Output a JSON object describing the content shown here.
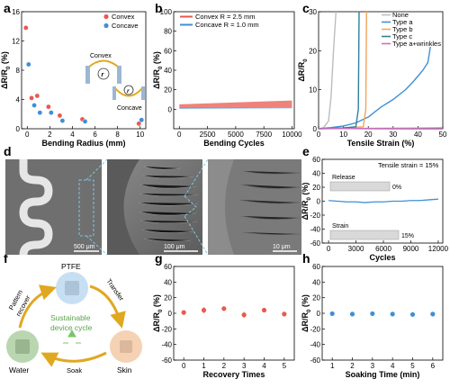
{
  "chart_data": [
    {
      "panel": "a",
      "type": "scatter",
      "xlabel": "Bending Radius (mm)",
      "ylabel": "ΔR/R0 (%)",
      "xlim": [
        -0.5,
        10.5
      ],
      "ylim": [
        0,
        16
      ],
      "xticks": [
        "0",
        "2",
        "4",
        "6",
        "8",
        "10"
      ],
      "yticks": [
        "0",
        "4",
        "8",
        "12",
        "16"
      ],
      "legend_position": "top-right",
      "series": [
        {
          "name": "Convex",
          "color": "#e8594f",
          "x": [
            0,
            0.5,
            1,
            2,
            3,
            5,
            10
          ],
          "y": [
            13.8,
            4.2,
            4.5,
            3.0,
            1.8,
            1.3,
            0.7
          ]
        },
        {
          "name": "Concave",
          "color": "#3f8fd8",
          "x": [
            0,
            0.5,
            1,
            2,
            3,
            5,
            10
          ],
          "y": [
            8.8,
            3.2,
            2.2,
            2.2,
            1.1,
            1.0,
            1.2
          ]
        }
      ],
      "annotations": {
        "convex": "Convex",
        "concave": "Concave",
        "r": "r"
      }
    },
    {
      "panel": "b",
      "type": "area",
      "xlabel": "Bending Cycles",
      "ylabel": "ΔR/R0 (%)",
      "xlim": [
        -500,
        10200
      ],
      "ylim": [
        -20,
        100
      ],
      "xticks": [
        "0",
        "2500",
        "5000",
        "7500",
        "10000"
      ],
      "yticks": [
        "0",
        "20",
        "40",
        "60",
        "80",
        "100"
      ],
      "legend_position": "top-left",
      "series": [
        {
          "name": "Convex   R = 2.5 mm",
          "color": "#e8594f",
          "x": [
            0,
            10000
          ],
          "y_low": [
            1,
            2
          ],
          "y_high": [
            5,
            9
          ]
        },
        {
          "name": "Concave R = 1.0 mm",
          "color": "#3f8fd8",
          "x": [
            0,
            10000
          ],
          "y_low": [
            0.5,
            1
          ],
          "y_high": [
            1.5,
            2
          ]
        }
      ]
    },
    {
      "panel": "c",
      "type": "line",
      "xlabel": "Tensile Strain (%)",
      "ylabel": "ΔR/R0",
      "xlim": [
        0,
        50
      ],
      "ylim": [
        0,
        30
      ],
      "xticks": [
        "0",
        "10",
        "20",
        "30",
        "40",
        "50"
      ],
      "yticks": [
        "0",
        "10",
        "20",
        "30"
      ],
      "legend_position": "top-right",
      "series": [
        {
          "name": "None",
          "color": "#bdbdbd",
          "x": [
            0,
            2,
            4,
            5,
            6,
            7
          ],
          "y": [
            0,
            0.3,
            2,
            8,
            20,
            30
          ]
        },
        {
          "name": "Type a",
          "color": "#3f8fd8",
          "x": [
            0,
            5,
            10,
            15,
            20,
            25,
            30,
            35,
            38,
            40,
            42,
            44,
            45
          ],
          "y": [
            0,
            0.3,
            0.7,
            1.5,
            3,
            5.5,
            7.5,
            10,
            12,
            13.5,
            15,
            17,
            21
          ]
        },
        {
          "name": "Type b",
          "color": "#f2a35b",
          "x": [
            0,
            10,
            18,
            19,
            19.3
          ],
          "y": [
            0,
            0.2,
            0.5,
            5,
            30
          ]
        },
        {
          "name": "Type c",
          "color": "#2f7f9a",
          "x": [
            0,
            10,
            15,
            16,
            16.3
          ],
          "y": [
            0,
            0.2,
            0.5,
            5,
            30
          ]
        },
        {
          "name": "Type a+wrinkles",
          "color": "#cc6ec0",
          "x": [
            0,
            10,
            20,
            30,
            40,
            50
          ],
          "y": [
            0,
            0.05,
            0.1,
            0.12,
            0.15,
            0.2
          ]
        }
      ]
    },
    {
      "panel": "e",
      "type": "line",
      "xlabel": "Cycles",
      "ylabel": "ΔR/R0 (%)",
      "xlim": [
        -700,
        12500
      ],
      "ylim": [
        -60,
        60
      ],
      "xticks": [
        "0",
        "3000",
        "6000",
        "9000",
        "12000"
      ],
      "yticks": [
        "-60",
        "-40",
        "-20",
        "0",
        "20",
        "40",
        "60"
      ],
      "series": [
        {
          "name": "response",
          "color": "#3f8fd8",
          "x": [
            0,
            1000,
            2000,
            3000,
            4000,
            5000,
            6000,
            7000,
            8000,
            9000,
            10000,
            11000,
            12000
          ],
          "y": [
            1,
            0,
            -1,
            -1,
            -2,
            -1,
            -1,
            0,
            0,
            1,
            1,
            2,
            3
          ]
        }
      ],
      "annotations": {
        "strain_note": "Tensile strain = 15%",
        "release": "Release",
        "strain": "Strain",
        "zero": "0%",
        "fifteen": "15%"
      }
    },
    {
      "panel": "g",
      "type": "scatter",
      "xlabel": "Recovery Times",
      "ylabel": "ΔR/R0 (%)",
      "xlim": [
        -0.5,
        5.5
      ],
      "ylim": [
        -60,
        60
      ],
      "xticks": [
        "0",
        "1",
        "2",
        "3",
        "4",
        "5"
      ],
      "yticks": [
        "-60",
        "-40",
        "-20",
        "0",
        "20",
        "40",
        "60"
      ],
      "series": [
        {
          "name": "recovery",
          "color": "#e8594f",
          "x": [
            0,
            1,
            2,
            3,
            4,
            5
          ],
          "y": [
            1,
            4,
            6,
            -2,
            4,
            -1
          ],
          "err": [
            2,
            4,
            3,
            4,
            1,
            3
          ]
        }
      ]
    },
    {
      "panel": "h",
      "type": "scatter",
      "xlabel": "Soaking Time (min)",
      "ylabel": "ΔR/R0 (%)",
      "xlim": [
        0.5,
        6.5
      ],
      "ylim": [
        -60,
        60
      ],
      "xticks": [
        "1",
        "2",
        "3",
        "4",
        "5",
        "6"
      ],
      "yticks": [
        "-60",
        "-40",
        "-20",
        "0",
        "20",
        "40",
        "60"
      ],
      "series": [
        {
          "name": "soak",
          "color": "#3f8fd8",
          "x": [
            1,
            2,
            3,
            4,
            5,
            6
          ],
          "y": [
            -0.5,
            -1,
            -0.5,
            -1,
            -1.5,
            -1
          ]
        }
      ]
    }
  ],
  "panels": {
    "a": "a",
    "b": "b",
    "c": "c",
    "d": "d",
    "e": "e",
    "f": "f",
    "g": "g",
    "h": "h"
  },
  "panel_d": {
    "scale1": "500 μm",
    "scale2": "100 μm",
    "scale3": "10 μm"
  },
  "panel_f": {
    "ptfe": "PTFE",
    "skin": "Skin",
    "water": "Water",
    "transfer": "Transfer",
    "soak": "Soak",
    "pattern": "Pattern",
    "recover": "recover",
    "center1": "Sustainable",
    "center2": "device cycle",
    "colors": {
      "ptfe": "#c7dff2",
      "skin": "#f5d2b3",
      "water": "#b9d6b0",
      "arrow": "#e0a81e",
      "center_text": "#5aa24a"
    }
  }
}
